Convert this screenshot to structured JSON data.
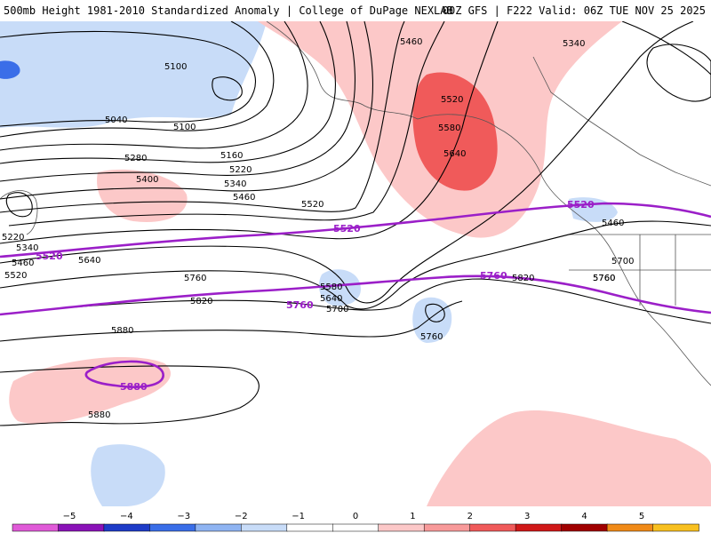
{
  "header": {
    "title_left": "500mb Height 1981-2010 Standardized Anomaly | College of DuPage NEXLAB",
    "title_right": "00Z GFS | F222 Valid: 06Z TUE NOV 25 2025"
  },
  "map": {
    "contour_labels": [
      "5460",
      "5340",
      "5100",
      "5040",
      "5100",
      "5160",
      "5220",
      "5280",
      "5340",
      "5400",
      "5460",
      "5520",
      "5520",
      "5580",
      "5640",
      "5220",
      "5340",
      "5460",
      "5520",
      "5640",
      "5760",
      "5580",
      "5640",
      "5700",
      "5820",
      "5880",
      "5880",
      "5760",
      "5760",
      "5820",
      "5700",
      "5760",
      "5460"
    ],
    "highlight_labels": [
      "5520",
      "5520",
      "5760",
      "5760",
      "5880"
    ],
    "colors": {
      "contour": "#000000",
      "highlight": "#9b1fc8",
      "land": "#555555"
    }
  },
  "colorbar": {
    "ticks": [
      "−5",
      "−4",
      "−3",
      "−2",
      "−1",
      "0",
      "1",
      "2",
      "3",
      "4",
      "5"
    ],
    "colors": [
      "#e05ad8",
      "#8a12b8",
      "#1e3cc8",
      "#3a6ee8",
      "#8fb4f2",
      "#c8dcf8",
      "#ffffff",
      "#ffffff",
      "#fcc8c8",
      "#f89a9a",
      "#f05a5a",
      "#d01818",
      "#a00000",
      "#f08a18",
      "#f8c020"
    ]
  }
}
